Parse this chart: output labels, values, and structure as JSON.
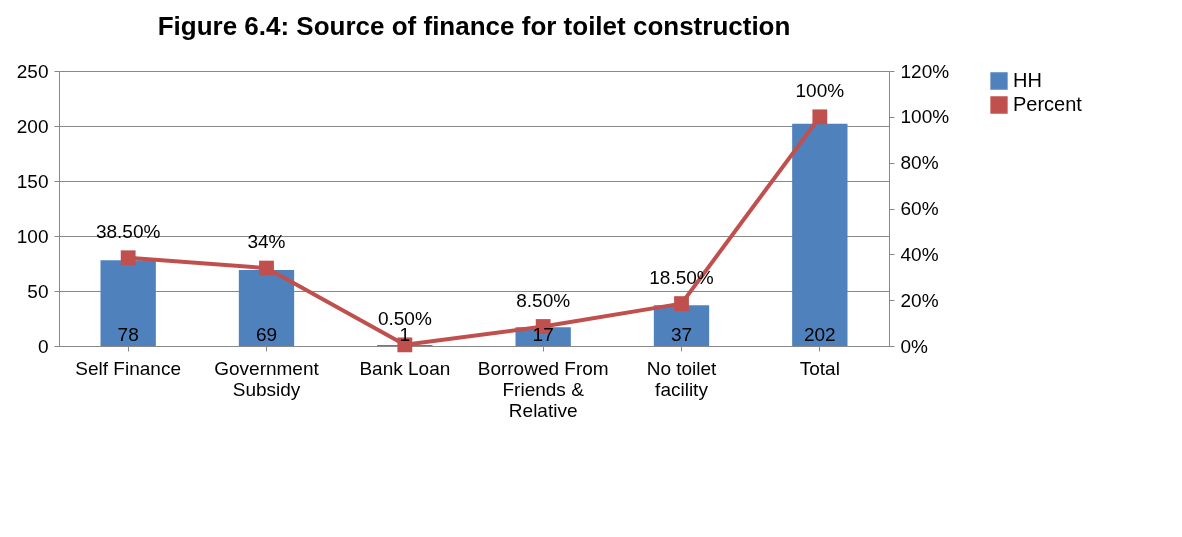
{
  "chart_data": {
    "type": "bar",
    "title": "Figure 6.4: Source of finance for toilet construction",
    "categories": [
      "Self Finance",
      "Government Subsidy",
      "Bank Loan",
      "Borrowed From Friends & Relative",
      "No toilet facility",
      "Total"
    ],
    "series": [
      {
        "name": "HH",
        "color": "#4f81bd",
        "values": [
          78,
          69,
          1,
          17,
          37,
          202
        ]
      },
      {
        "name": "Percent",
        "type": "line",
        "axis": "y2",
        "color": "#c0504d",
        "values": [
          38.5,
          34,
          0.5,
          8.5,
          18.5,
          100
        ],
        "value_labels": [
          "38.50%",
          "34%",
          "0.50%",
          "8.50%",
          "18.50%",
          "100%"
        ]
      }
    ],
    "data_labels": true,
    "ylim": [
      0,
      250
    ],
    "yticks": [
      0,
      50,
      100,
      150,
      200,
      250
    ],
    "y2lim": [
      0,
      120
    ],
    "y2ticks": [
      {
        "value": 0,
        "label": "0%"
      },
      {
        "value": 20,
        "label": "20%"
      },
      {
        "value": 40,
        "label": "40%"
      },
      {
        "value": 60,
        "label": "60%"
      },
      {
        "value": 80,
        "label": "80%"
      },
      {
        "value": 100,
        "label": "100%"
      },
      {
        "value": 120,
        "label": "120%"
      }
    ],
    "grid": "y",
    "legend": "right",
    "marker": "square",
    "line_style": "solid"
  }
}
